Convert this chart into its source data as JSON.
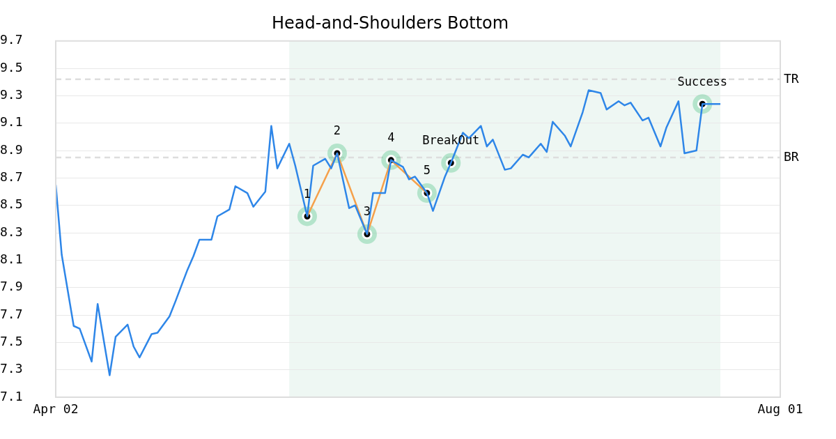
{
  "chart_data": {
    "type": "line",
    "title": "Head-and-Shoulders Bottom",
    "x": [
      "--04-02",
      "--04-03",
      "--04-05",
      "--04-06",
      "--04-08",
      "--04-09",
      "--04-11",
      "--04-12",
      "--04-14",
      "--04-15",
      "--04-16",
      "--04-18",
      "--04-19",
      "--04-21",
      "--04-22",
      "--04-24",
      "--04-25",
      "--04-26",
      "--04-28",
      "--04-29",
      "--05-01",
      "--05-02",
      "--05-04",
      "--05-05",
      "--05-07",
      "--05-08",
      "--05-09",
      "--05-11",
      "--05-12",
      "--05-14",
      "--05-15",
      "--05-17",
      "--05-18",
      "--05-19",
      "--05-21",
      "--05-22",
      "--05-24",
      "--05-25",
      "--05-27",
      "--05-28",
      "--05-30",
      "--05-31",
      "--06-01",
      "--06-03",
      "--06-04",
      "--06-06",
      "--06-07",
      "--06-09",
      "--06-10",
      "--06-12",
      "--06-13",
      "--06-14",
      "--06-16",
      "--06-17",
      "--06-19",
      "--06-20",
      "--06-22",
      "--06-23",
      "--06-24",
      "--06-26",
      "--06-27",
      "--06-29",
      "--06-30",
      "--07-02",
      "--07-03",
      "--07-05",
      "--07-06",
      "--07-07",
      "--07-09",
      "--07-10",
      "--07-12",
      "--07-13",
      "--07-15",
      "--07-16",
      "--07-18",
      "--07-19",
      "--07-20",
      "--07-22"
    ],
    "xlim": [
      "--04-02",
      "--08-01"
    ],
    "xticks": [
      {
        "value": "--04-02",
        "label": "Apr 02"
      },
      {
        "value": "--08-01",
        "label": "Aug 01"
      }
    ],
    "ylim": [
      7.1,
      9.7
    ],
    "yticks": [
      7.1,
      7.3,
      7.5,
      7.7,
      7.9,
      8.1,
      8.3,
      8.5,
      8.7,
      8.9,
      9.1,
      9.3,
      9.5,
      9.7
    ],
    "grid": "y",
    "legend": false,
    "marker": "none",
    "line_style": "solid",
    "series": [
      {
        "color": "#2e86e8",
        "values": [
          8.65,
          8.14,
          7.62,
          7.6,
          7.36,
          7.78,
          7.26,
          7.54,
          7.63,
          7.47,
          7.39,
          7.56,
          7.57,
          7.69,
          7.8,
          8.03,
          8.13,
          8.25,
          8.25,
          8.42,
          8.47,
          8.64,
          8.59,
          8.49,
          8.6,
          9.08,
          8.77,
          8.95,
          8.79,
          8.42,
          8.79,
          8.84,
          8.77,
          8.88,
          8.48,
          8.5,
          8.29,
          8.59,
          8.59,
          8.83,
          8.78,
          8.69,
          8.71,
          8.59,
          8.46,
          8.71,
          8.81,
          9.03,
          8.99,
          9.08,
          8.93,
          8.98,
          8.76,
          8.77,
          8.87,
          8.85,
          8.95,
          8.89,
          9.11,
          9.01,
          8.93,
          9.18,
          9.34,
          9.32,
          9.2,
          9.26,
          9.23,
          9.25,
          9.12,
          9.14,
          8.93,
          9.07,
          9.26,
          8.88,
          8.9,
          9.24,
          9.24,
          9.24
        ]
      },
      {
        "type": "line",
        "color": "#f5a04a",
        "x": [
          "--05-14",
          "--05-19",
          "--05-24",
          "--05-28",
          "--06-03"
        ],
        "values": [
          8.42,
          8.88,
          8.29,
          8.83,
          8.59
        ]
      },
      {
        "type": "scatter",
        "marker": "circle",
        "color": "#000000",
        "x": [
          "--05-14",
          "--05-19",
          "--05-24",
          "--05-28",
          "--06-03",
          "--06-07",
          "--07-19"
        ],
        "values": [
          8.42,
          8.88,
          8.29,
          8.83,
          8.59,
          8.81,
          9.24
        ]
      }
    ],
    "ref_lines": [
      {
        "axis": "y",
        "value": 9.42,
        "label": "TR",
        "color": "#dddddd",
        "line_style": "dashed"
      },
      {
        "axis": "y",
        "value": 8.85,
        "label": "BR",
        "color": "#dddddd",
        "line_style": "dashed"
      }
    ],
    "bands": [
      {
        "axis": "x",
        "from": "--05-11",
        "to": "--07-22",
        "color": "#eef7f3"
      }
    ],
    "annotations": [
      {
        "text": "1",
        "x": "--05-14",
        "y": 8.42
      },
      {
        "text": "2",
        "x": "--05-19",
        "y": 8.88
      },
      {
        "text": "3",
        "x": "--05-24",
        "y": 8.29
      },
      {
        "text": "4",
        "x": "--05-28",
        "y": 8.83
      },
      {
        "text": "5",
        "x": "--06-03",
        "y": 8.59
      },
      {
        "text": "BreakOut",
        "x": "--06-07",
        "y": 8.81
      },
      {
        "text": "Success",
        "x": "--07-19",
        "y": 9.24
      }
    ]
  }
}
